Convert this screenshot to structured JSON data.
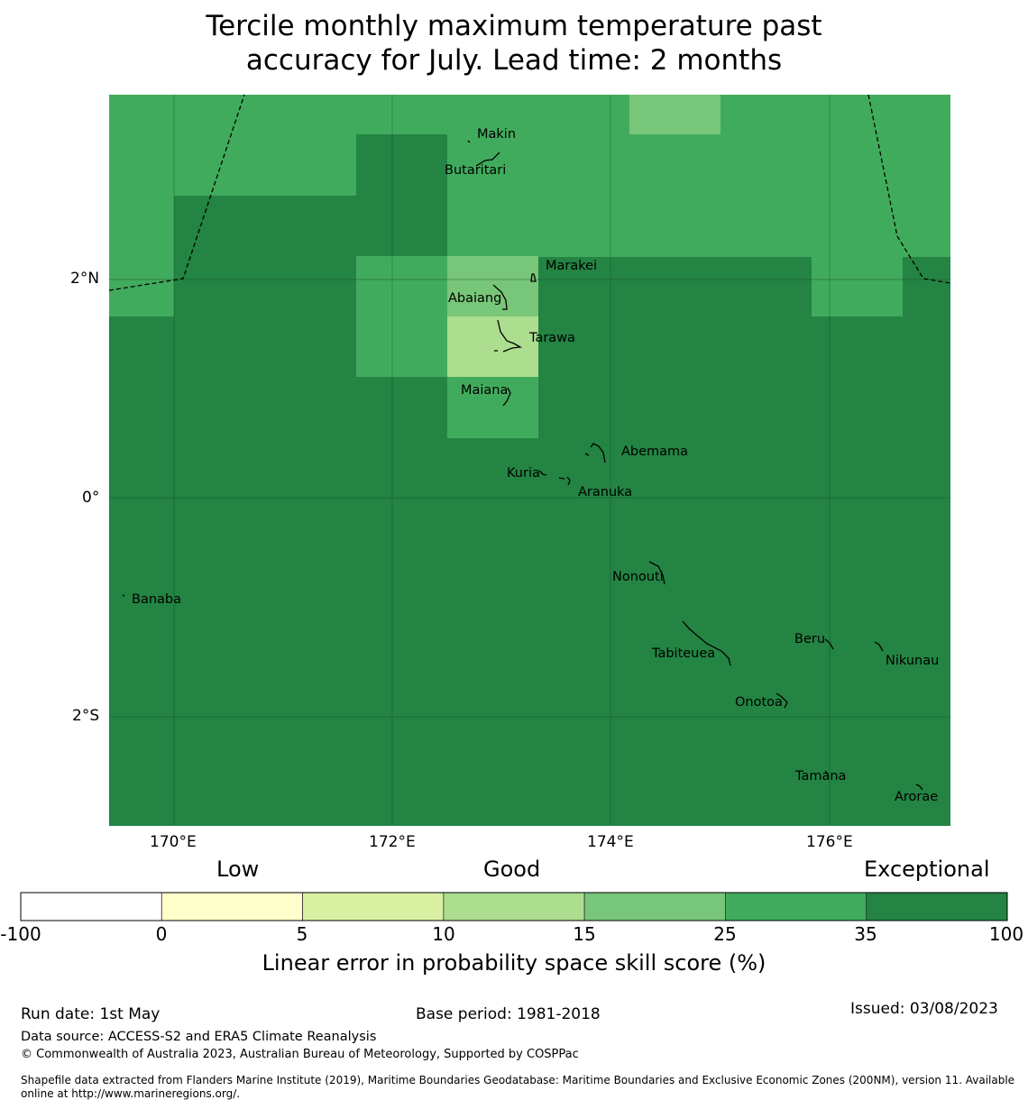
{
  "title": {
    "line1": "Tercile monthly maximum temperature past",
    "line2": "accuracy for July. Lead time: 2 months"
  },
  "map": {
    "lon_range": [
      169.4,
      177.1
    ],
    "lat_range": [
      -3.0,
      3.7
    ],
    "grid_spacing_deg": 2,
    "lon_ticks": [
      "170°E",
      "172°E",
      "174°E",
      "176°E"
    ],
    "lat_ticks": [
      "2°N",
      "0°",
      "2°S"
    ],
    "islands": [
      {
        "name": "Makin"
      },
      {
        "name": "Butaritari"
      },
      {
        "name": "Marakei"
      },
      {
        "name": "Abaiang"
      },
      {
        "name": "Tarawa"
      },
      {
        "name": "Maiana"
      },
      {
        "name": "Abemama"
      },
      {
        "name": "Kuria"
      },
      {
        "name": "Aranuka"
      },
      {
        "name": "Nonouti"
      },
      {
        "name": "Banaba"
      },
      {
        "name": "Tabiteuea"
      },
      {
        "name": "Beru"
      },
      {
        "name": "Nikunau"
      },
      {
        "name": "Onotoa"
      },
      {
        "name": "Tamana"
      },
      {
        "name": "Arorae"
      }
    ]
  },
  "legend": {
    "categories": [
      "Low",
      "Good",
      "Exceptional"
    ],
    "bins": [
      {
        "from": "-100",
        "to": "0",
        "color": "#ffffff"
      },
      {
        "from": "0",
        "to": "5",
        "color": "#ffffcc"
      },
      {
        "from": "5",
        "to": "10",
        "color": "#d9f0a3"
      },
      {
        "from": "10",
        "to": "15",
        "color": "#addd8e"
      },
      {
        "from": "15",
        "to": "25",
        "color": "#78c679"
      },
      {
        "from": "25",
        "to": "35",
        "color": "#41ab5d"
      },
      {
        "from": "35",
        "to": "100",
        "color": "#238443"
      }
    ],
    "tick_labels": [
      "-100",
      "0",
      "5",
      "10",
      "15",
      "25",
      "35",
      "100"
    ],
    "title": "Linear error in probability space skill score (%)"
  },
  "footer": {
    "run_date": "Run date: 1st May",
    "base_period": "Base period: 1981-2018",
    "issued": "Issued: 03/08/2023",
    "data_source": "Data source: ACCESS-S2 and ERA5 Climate Reanalysis",
    "copyright": "© Commonwealth of Australia 2023, Australian Bureau of Meteorology, Supported by COSPPac",
    "shapefile_line1": "Shapefile data extracted from Flanders Marine Institute (2019), Maritime Boundaries Geodatabase: Maritime Boundaries and Exclusive Economic Zones (200NM), version 11. Available",
    "shapefile_line2": "online at http://www.marineregions.org/."
  }
}
